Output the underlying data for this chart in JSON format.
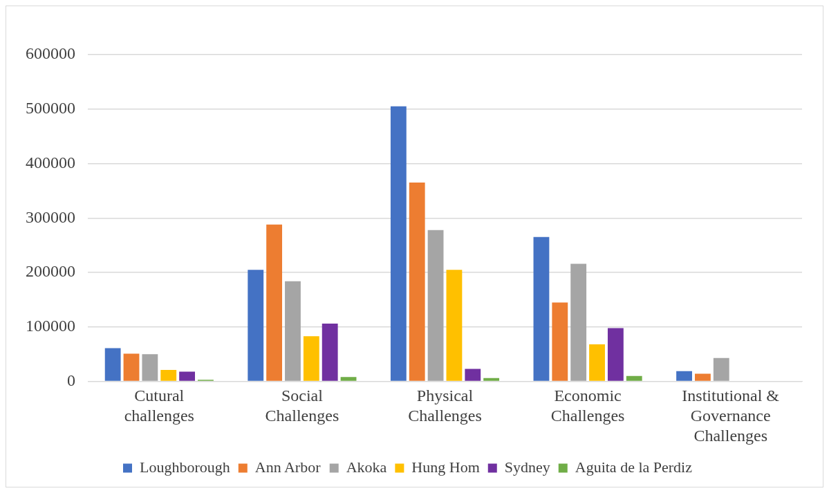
{
  "chart_data": {
    "type": "bar",
    "categories": [
      "Cutural challenges",
      "Social Challenges",
      "Physical Challenges",
      "Economic Challenges",
      "Institutional & Governance Challenges"
    ],
    "series": [
      {
        "name": "Loughborough",
        "color": "#4472c4",
        "values": [
          61000,
          205000,
          505000,
          265000,
          19000
        ]
      },
      {
        "name": "Ann Arbor",
        "color": "#ed7d31",
        "values": [
          51000,
          288000,
          365000,
          145000,
          14000
        ]
      },
      {
        "name": "Akoka",
        "color": "#a5a5a5",
        "values": [
          50000,
          184000,
          278000,
          216000,
          43000
        ]
      },
      {
        "name": "Hung Hom",
        "color": "#ffc000",
        "values": [
          21000,
          83000,
          205000,
          68000,
          0
        ]
      },
      {
        "name": "Sydney",
        "color": "#7030a0",
        "values": [
          18000,
          106000,
          23000,
          98000,
          0
        ]
      },
      {
        "name": "Aguita de la Perdiz",
        "color": "#70ad47",
        "values": [
          3000,
          8000,
          6000,
          10000,
          0
        ]
      }
    ],
    "ylim": [
      0,
      600000
    ],
    "yticks": [
      0,
      100000,
      200000,
      300000,
      400000,
      500000,
      600000
    ],
    "grid": "y",
    "legend": "bottom"
  }
}
